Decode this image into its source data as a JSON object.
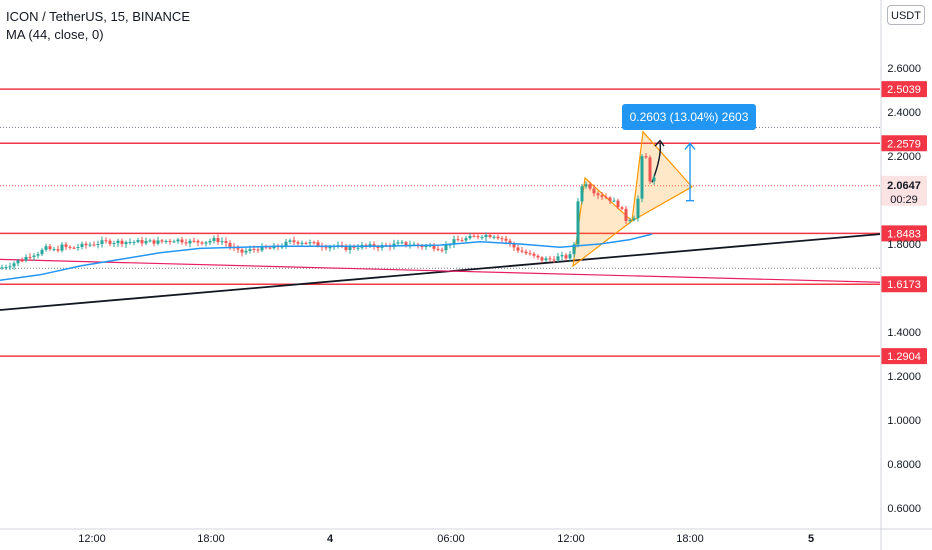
{
  "legend": {
    "symbol": "ICON / TetherUS, 15, BINANCE",
    "indicator": "MA (44, close, 0)"
  },
  "currency_button": "USDT",
  "measure_label": "0.2603 (13.04%) 2603",
  "colors": {
    "up": "#26a69a",
    "down": "#ef5350",
    "ma": "#2196f3",
    "hline": "#f23645",
    "trend_black": "#131722",
    "trend_pink": "#e91e63",
    "pattern": "#ff9800"
  },
  "chart_data": {
    "type": "candlestick",
    "y_axis": {
      "ticks": [
        "2.6000",
        "2.4000",
        "2.2000",
        "1.8000",
        "1.4000",
        "1.2000",
        "1.0000",
        "0.8000",
        "0.6000"
      ],
      "range": [
        0.55,
        2.75
      ]
    },
    "x_axis": {
      "ticks": [
        "12:00",
        "18:00",
        "4",
        "06:00",
        "12:00",
        "18:00",
        "5"
      ]
    },
    "horizontal_levels": [
      "2.5039",
      "2.2579",
      "1.8483",
      "1.6173",
      "1.2904"
    ],
    "last_price": {
      "value": "2.0647",
      "countdown": "00:29"
    },
    "high_marker": 2.33,
    "ma_period": 44,
    "candle_path": [
      [
        0,
        1.69
      ],
      [
        12,
        1.71
      ],
      [
        22,
        1.73
      ],
      [
        30,
        1.75
      ],
      [
        38,
        1.76
      ],
      [
        46,
        1.78
      ],
      [
        55,
        1.77
      ],
      [
        62,
        1.79
      ],
      [
        70,
        1.78
      ],
      [
        80,
        1.79
      ],
      [
        92,
        1.8
      ],
      [
        105,
        1.81
      ],
      [
        118,
        1.81
      ],
      [
        130,
        1.81
      ],
      [
        145,
        1.81
      ],
      [
        160,
        1.81
      ],
      [
        175,
        1.82
      ],
      [
        190,
        1.81
      ],
      [
        205,
        1.81
      ],
      [
        215,
        1.82
      ],
      [
        225,
        1.81
      ],
      [
        232,
        1.78
      ],
      [
        240,
        1.76
      ],
      [
        248,
        1.77
      ],
      [
        258,
        1.78
      ],
      [
        270,
        1.78
      ],
      [
        280,
        1.79
      ],
      [
        290,
        1.81
      ],
      [
        302,
        1.81
      ],
      [
        314,
        1.8
      ],
      [
        325,
        1.79
      ],
      [
        335,
        1.79
      ],
      [
        345,
        1.78
      ],
      [
        358,
        1.79
      ],
      [
        370,
        1.79
      ],
      [
        385,
        1.79
      ],
      [
        398,
        1.8
      ],
      [
        410,
        1.8
      ],
      [
        420,
        1.79
      ],
      [
        432,
        1.79
      ],
      [
        442,
        1.78
      ],
      [
        452,
        1.81
      ],
      [
        462,
        1.82
      ],
      [
        472,
        1.83
      ],
      [
        482,
        1.84
      ],
      [
        495,
        1.84
      ],
      [
        505,
        1.82
      ],
      [
        512,
        1.79
      ],
      [
        520,
        1.77
      ],
      [
        530,
        1.75
      ],
      [
        540,
        1.73
      ],
      [
        550,
        1.73
      ],
      [
        558,
        1.74
      ],
      [
        566,
        1.74
      ],
      [
        573,
        1.75
      ],
      [
        578,
        2.0
      ],
      [
        584,
        2.09
      ],
      [
        590,
        2.06
      ],
      [
        596,
        2.03
      ],
      [
        602,
        2.02
      ],
      [
        608,
        2.01
      ],
      [
        614,
        1.99
      ],
      [
        620,
        1.97
      ],
      [
        626,
        1.91
      ],
      [
        632,
        1.92
      ],
      [
        636,
        1.93
      ],
      [
        640,
        2.08
      ],
      [
        644,
        2.3
      ],
      [
        648,
        2.08
      ],
      [
        653,
        2.11
      ],
      [
        656,
        2.07
      ]
    ]
  }
}
